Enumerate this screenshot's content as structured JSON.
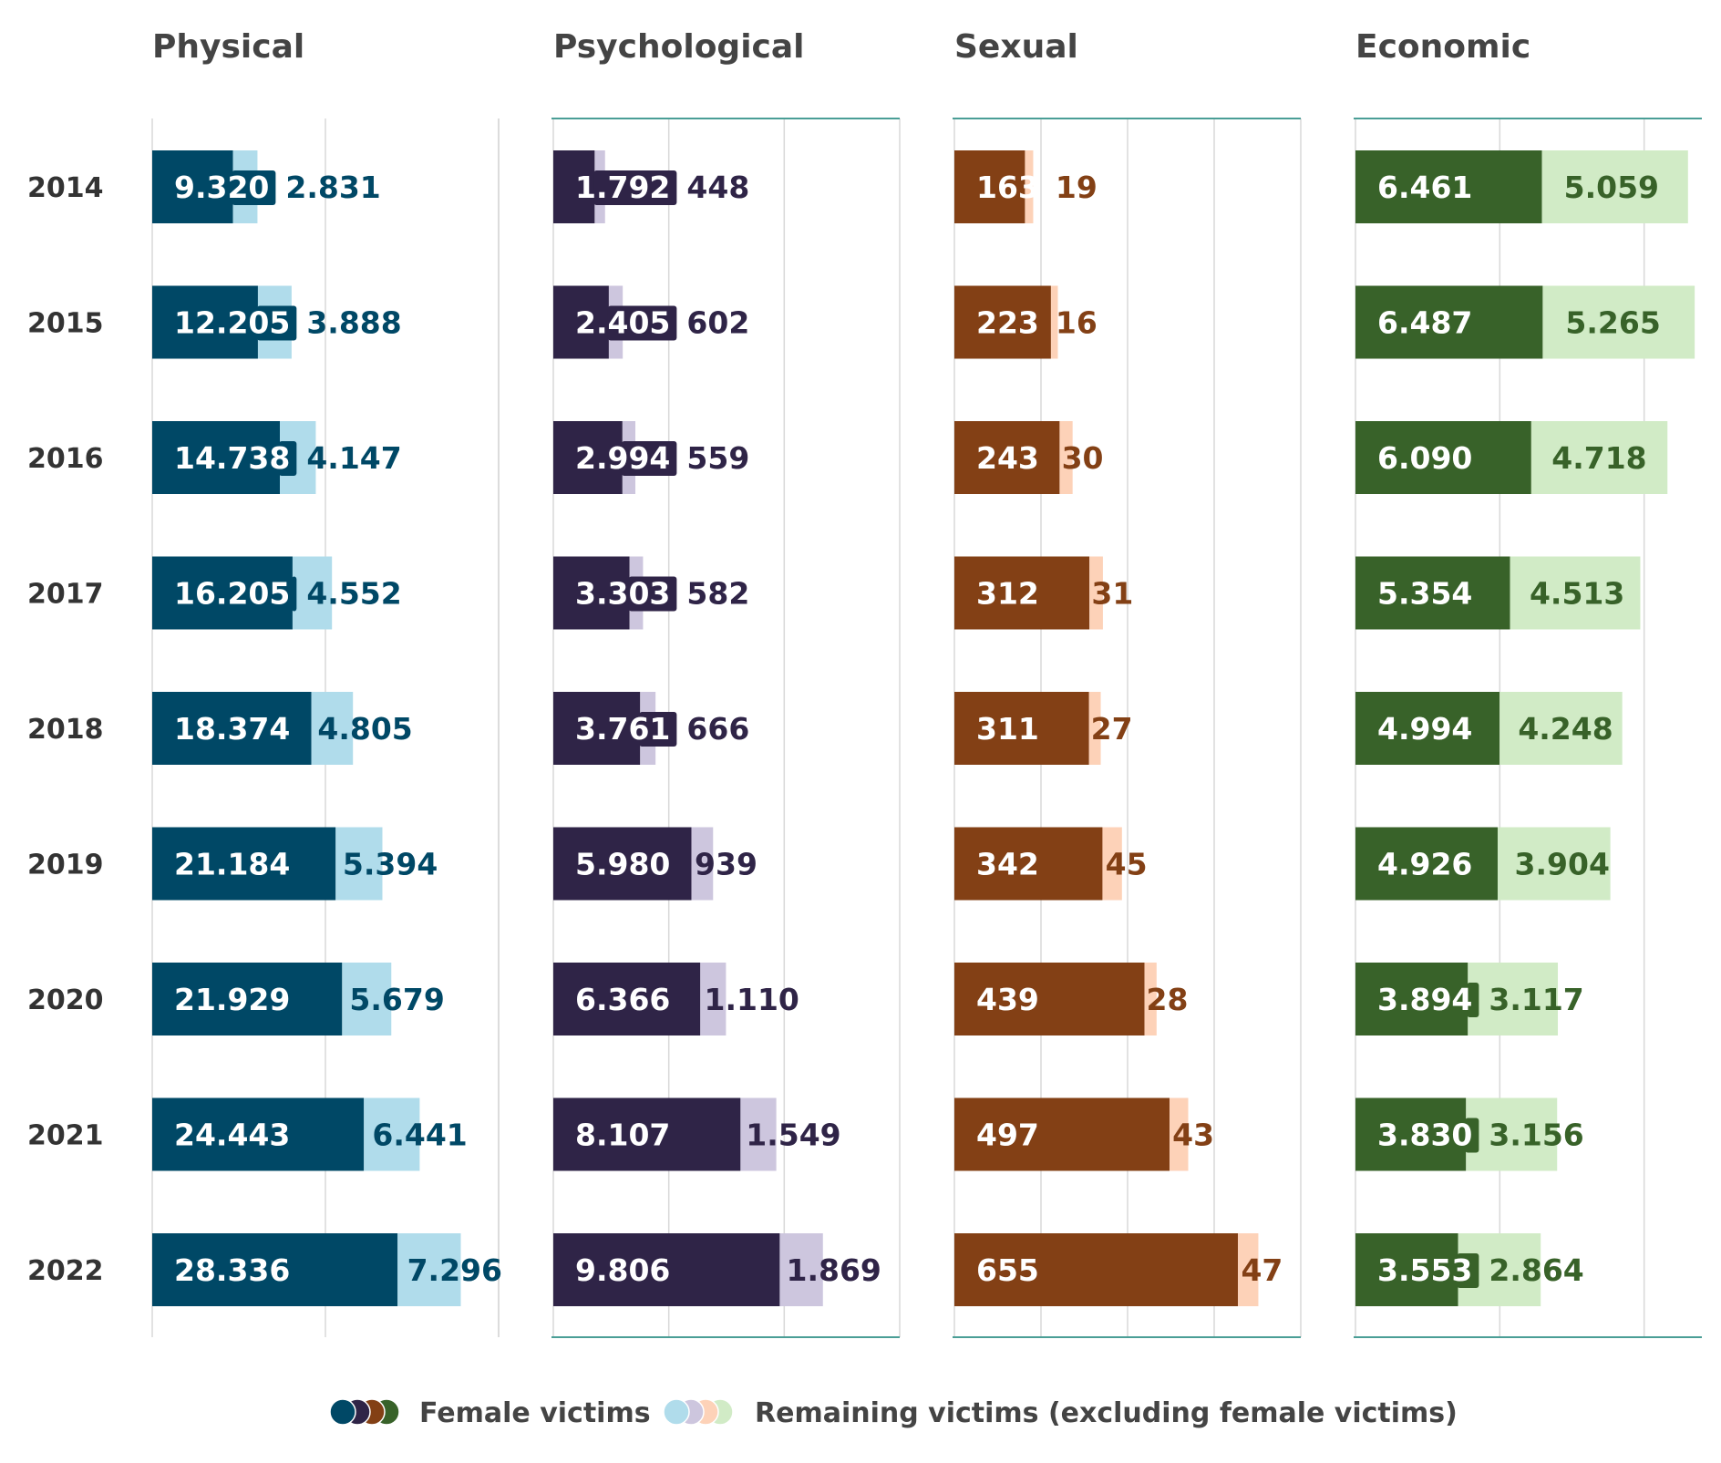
{
  "colors": {
    "physical": {
      "female": "#004866",
      "remaining": "#b0dceb",
      "label": "#004866"
    },
    "psychological": {
      "female": "#2f2447",
      "remaining": "#cdc6de",
      "label": "#2f2447"
    },
    "sexual": {
      "female": "#834015",
      "remaining": "#fdd2b8",
      "label": "#834015"
    },
    "economic": {
      "female": "#386229",
      "remaining": "#d1ebc6",
      "label": "#386229"
    },
    "grid": "#d8d8d8",
    "axis_line": "#4a9e96",
    "year_text": "#333333"
  },
  "legend": {
    "female": "Female victims",
    "remaining": "Remaining victims (excluding female victims)"
  },
  "chart_data": {
    "type": "bar",
    "orientation": "horizontal",
    "stacked": true,
    "categories": [
      "2014",
      "2015",
      "2016",
      "2017",
      "2018",
      "2019",
      "2020",
      "2021",
      "2022"
    ],
    "panels": [
      {
        "key": "physical",
        "title": "Physical",
        "xlim": [
          0,
          40000
        ],
        "grid_step": 20000,
        "series": [
          {
            "name": "Female victims",
            "values": [
              9320,
              12205,
              14738,
              16205,
              18374,
              21184,
              21929,
              24443,
              28336
            ],
            "labels": [
              "9.320",
              "12.205",
              "14.738",
              "16.205",
              "18.374",
              "21.184",
              "21.929",
              "24.443",
              "28.336"
            ]
          },
          {
            "name": "Remaining victims (excluding female victims)",
            "values": [
              2831,
              3888,
              4147,
              4552,
              4805,
              5394,
              5679,
              6441,
              7296
            ],
            "labels": [
              "2.831",
              "3.888",
              "4.147",
              "4.552",
              "4.805",
              "5.394",
              "5.679",
              "6.441",
              "7.296"
            ]
          }
        ]
      },
      {
        "key": "psychological",
        "title": "Psychological",
        "xlim": [
          0,
          15000
        ],
        "grid_step": 5000,
        "series": [
          {
            "name": "Female victims",
            "values": [
              1792,
              2405,
              2994,
              3303,
              3761,
              5980,
              6366,
              8107,
              9806
            ],
            "labels": [
              "1.792",
              "2.405",
              "2.994",
              "3.303",
              "3.761",
              "5.980",
              "6.366",
              "8.107",
              "9.806"
            ]
          },
          {
            "name": "Remaining victims (excluding female victims)",
            "values": [
              448,
              602,
              559,
              582,
              666,
              939,
              1110,
              1549,
              1869
            ],
            "labels": [
              "448",
              "602",
              "559",
              "582",
              "666",
              "939",
              "1.110",
              "1.549",
              "1.869"
            ]
          }
        ]
      },
      {
        "key": "sexual",
        "title": "Sexual",
        "xlim": [
          0,
          800
        ],
        "grid_step": 200,
        "series": [
          {
            "name": "Female victims",
            "values": [
              163,
              223,
              243,
              312,
              311,
              342,
              439,
              497,
              655
            ],
            "labels": [
              "163",
              "223",
              "243",
              "312",
              "311",
              "342",
              "439",
              "497",
              "655"
            ]
          },
          {
            "name": "Remaining victims (excluding female victims)",
            "values": [
              19,
              16,
              30,
              31,
              27,
              45,
              28,
              43,
              47
            ],
            "labels": [
              "19",
              "16",
              "30",
              "31",
              "27",
              "45",
              "28",
              "43",
              "47"
            ]
          }
        ]
      },
      {
        "key": "economic",
        "title": "Economic",
        "xlim": [
          0,
          12000
        ],
        "grid_step": 5000,
        "series": [
          {
            "name": "Female victims",
            "values": [
              6461,
              6487,
              6090,
              5354,
              4994,
              4926,
              3894,
              3830,
              3553
            ],
            "labels": [
              "6.461",
              "6.487",
              "6.090",
              "5.354",
              "4.994",
              "4.926",
              "3.894",
              "3.830",
              "3.553"
            ]
          },
          {
            "name": "Remaining victims (excluding female victims)",
            "values": [
              5059,
              5265,
              4718,
              4513,
              4248,
              3904,
              3117,
              3156,
              2864
            ],
            "labels": [
              "5.059",
              "5.265",
              "4.718",
              "4.513",
              "4.248",
              "3.904",
              "3.117",
              "3.156",
              "2.864"
            ]
          }
        ]
      }
    ]
  }
}
